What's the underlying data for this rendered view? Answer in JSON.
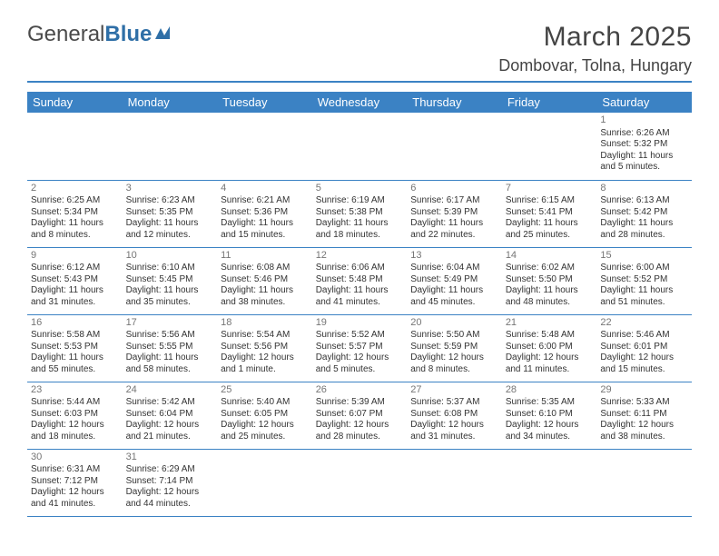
{
  "logo": {
    "part1": "General",
    "part2": "Blue"
  },
  "title": "March 2025",
  "location": "Dombovar, Tolna, Hungary",
  "colors": {
    "header_bg": "#3b82c4",
    "header_text": "#ffffff",
    "daynum": "#757575",
    "border": "#3b82c4",
    "title": "#444444"
  },
  "weekdays": [
    "Sunday",
    "Monday",
    "Tuesday",
    "Wednesday",
    "Thursday",
    "Friday",
    "Saturday"
  ],
  "weeks": [
    [
      null,
      null,
      null,
      null,
      null,
      null,
      {
        "n": "1",
        "sr": "Sunrise: 6:26 AM",
        "ss": "Sunset: 5:32 PM",
        "dl": "Daylight: 11 hours and 5 minutes."
      }
    ],
    [
      {
        "n": "2",
        "sr": "Sunrise: 6:25 AM",
        "ss": "Sunset: 5:34 PM",
        "dl": "Daylight: 11 hours and 8 minutes."
      },
      {
        "n": "3",
        "sr": "Sunrise: 6:23 AM",
        "ss": "Sunset: 5:35 PM",
        "dl": "Daylight: 11 hours and 12 minutes."
      },
      {
        "n": "4",
        "sr": "Sunrise: 6:21 AM",
        "ss": "Sunset: 5:36 PM",
        "dl": "Daylight: 11 hours and 15 minutes."
      },
      {
        "n": "5",
        "sr": "Sunrise: 6:19 AM",
        "ss": "Sunset: 5:38 PM",
        "dl": "Daylight: 11 hours and 18 minutes."
      },
      {
        "n": "6",
        "sr": "Sunrise: 6:17 AM",
        "ss": "Sunset: 5:39 PM",
        "dl": "Daylight: 11 hours and 22 minutes."
      },
      {
        "n": "7",
        "sr": "Sunrise: 6:15 AM",
        "ss": "Sunset: 5:41 PM",
        "dl": "Daylight: 11 hours and 25 minutes."
      },
      {
        "n": "8",
        "sr": "Sunrise: 6:13 AM",
        "ss": "Sunset: 5:42 PM",
        "dl": "Daylight: 11 hours and 28 minutes."
      }
    ],
    [
      {
        "n": "9",
        "sr": "Sunrise: 6:12 AM",
        "ss": "Sunset: 5:43 PM",
        "dl": "Daylight: 11 hours and 31 minutes."
      },
      {
        "n": "10",
        "sr": "Sunrise: 6:10 AM",
        "ss": "Sunset: 5:45 PM",
        "dl": "Daylight: 11 hours and 35 minutes."
      },
      {
        "n": "11",
        "sr": "Sunrise: 6:08 AM",
        "ss": "Sunset: 5:46 PM",
        "dl": "Daylight: 11 hours and 38 minutes."
      },
      {
        "n": "12",
        "sr": "Sunrise: 6:06 AM",
        "ss": "Sunset: 5:48 PM",
        "dl": "Daylight: 11 hours and 41 minutes."
      },
      {
        "n": "13",
        "sr": "Sunrise: 6:04 AM",
        "ss": "Sunset: 5:49 PM",
        "dl": "Daylight: 11 hours and 45 minutes."
      },
      {
        "n": "14",
        "sr": "Sunrise: 6:02 AM",
        "ss": "Sunset: 5:50 PM",
        "dl": "Daylight: 11 hours and 48 minutes."
      },
      {
        "n": "15",
        "sr": "Sunrise: 6:00 AM",
        "ss": "Sunset: 5:52 PM",
        "dl": "Daylight: 11 hours and 51 minutes."
      }
    ],
    [
      {
        "n": "16",
        "sr": "Sunrise: 5:58 AM",
        "ss": "Sunset: 5:53 PM",
        "dl": "Daylight: 11 hours and 55 minutes."
      },
      {
        "n": "17",
        "sr": "Sunrise: 5:56 AM",
        "ss": "Sunset: 5:55 PM",
        "dl": "Daylight: 11 hours and 58 minutes."
      },
      {
        "n": "18",
        "sr": "Sunrise: 5:54 AM",
        "ss": "Sunset: 5:56 PM",
        "dl": "Daylight: 12 hours and 1 minute."
      },
      {
        "n": "19",
        "sr": "Sunrise: 5:52 AM",
        "ss": "Sunset: 5:57 PM",
        "dl": "Daylight: 12 hours and 5 minutes."
      },
      {
        "n": "20",
        "sr": "Sunrise: 5:50 AM",
        "ss": "Sunset: 5:59 PM",
        "dl": "Daylight: 12 hours and 8 minutes."
      },
      {
        "n": "21",
        "sr": "Sunrise: 5:48 AM",
        "ss": "Sunset: 6:00 PM",
        "dl": "Daylight: 12 hours and 11 minutes."
      },
      {
        "n": "22",
        "sr": "Sunrise: 5:46 AM",
        "ss": "Sunset: 6:01 PM",
        "dl": "Daylight: 12 hours and 15 minutes."
      }
    ],
    [
      {
        "n": "23",
        "sr": "Sunrise: 5:44 AM",
        "ss": "Sunset: 6:03 PM",
        "dl": "Daylight: 12 hours and 18 minutes."
      },
      {
        "n": "24",
        "sr": "Sunrise: 5:42 AM",
        "ss": "Sunset: 6:04 PM",
        "dl": "Daylight: 12 hours and 21 minutes."
      },
      {
        "n": "25",
        "sr": "Sunrise: 5:40 AM",
        "ss": "Sunset: 6:05 PM",
        "dl": "Daylight: 12 hours and 25 minutes."
      },
      {
        "n": "26",
        "sr": "Sunrise: 5:39 AM",
        "ss": "Sunset: 6:07 PM",
        "dl": "Daylight: 12 hours and 28 minutes."
      },
      {
        "n": "27",
        "sr": "Sunrise: 5:37 AM",
        "ss": "Sunset: 6:08 PM",
        "dl": "Daylight: 12 hours and 31 minutes."
      },
      {
        "n": "28",
        "sr": "Sunrise: 5:35 AM",
        "ss": "Sunset: 6:10 PM",
        "dl": "Daylight: 12 hours and 34 minutes."
      },
      {
        "n": "29",
        "sr": "Sunrise: 5:33 AM",
        "ss": "Sunset: 6:11 PM",
        "dl": "Daylight: 12 hours and 38 minutes."
      }
    ],
    [
      {
        "n": "30",
        "sr": "Sunrise: 6:31 AM",
        "ss": "Sunset: 7:12 PM",
        "dl": "Daylight: 12 hours and 41 minutes."
      },
      {
        "n": "31",
        "sr": "Sunrise: 6:29 AM",
        "ss": "Sunset: 7:14 PM",
        "dl": "Daylight: 12 hours and 44 minutes."
      },
      null,
      null,
      null,
      null,
      null
    ]
  ]
}
